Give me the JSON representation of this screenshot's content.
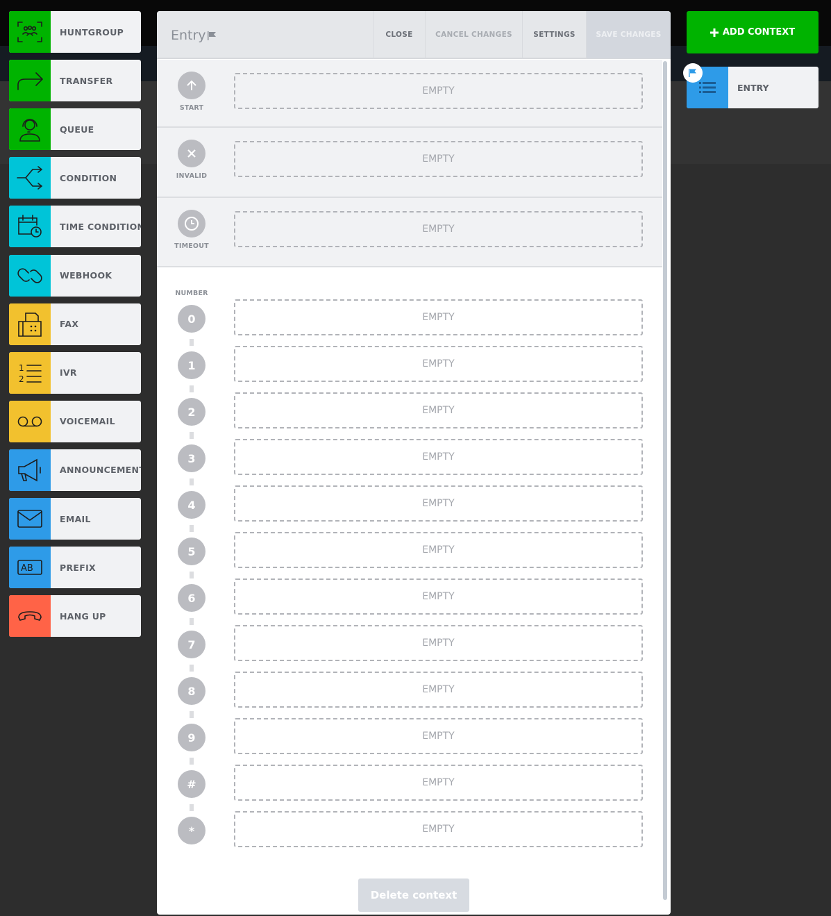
{
  "tools": [
    {
      "label": "HUNTGROUP",
      "icon": "huntgroup-icon",
      "color": "#00b300"
    },
    {
      "label": "TRANSFER",
      "icon": "transfer-arrow-icon",
      "color": "#00b300"
    },
    {
      "label": "QUEUE",
      "icon": "headset-agent-icon",
      "color": "#00b300"
    },
    {
      "label": "CONDITION",
      "icon": "branch-icon",
      "color": "#00c4d8"
    },
    {
      "label": "TIME CONDITION",
      "icon": "calendar-clock-icon",
      "color": "#00c4d8"
    },
    {
      "label": "WEBHOOK",
      "icon": "link-icon",
      "color": "#00c4d8"
    },
    {
      "label": "FAX",
      "icon": "fax-icon",
      "color": "#f2c12e"
    },
    {
      "label": "IVR",
      "icon": "numbered-list-icon",
      "color": "#f2c12e"
    },
    {
      "label": "VOICEMAIL",
      "icon": "voicemail-icon",
      "color": "#f2c12e"
    },
    {
      "label": "ANNOUNCEMENT",
      "icon": "megaphone-icon",
      "color": "#2e9be8"
    },
    {
      "label": "EMAIL",
      "icon": "envelope-icon",
      "color": "#2e9be8"
    },
    {
      "label": "PREFIX",
      "icon": "ab-prefix-icon",
      "color": "#2e9be8"
    },
    {
      "label": "HANG UP",
      "icon": "hangup-phone-icon",
      "color": "#ff6347"
    }
  ],
  "modal": {
    "title": "Entry",
    "buttons": {
      "close": "CLOSE",
      "cancel": "CANCEL CHANGES",
      "settings": "SETTINGS",
      "save": "SAVE CHANGES"
    },
    "sections": [
      {
        "label": "START",
        "icon": "arrow-up-icon",
        "slot": "EMPTY"
      },
      {
        "label": "INVALID",
        "icon": "x-icon",
        "slot": "EMPTY"
      },
      {
        "label": "TIMEOUT",
        "icon": "clock-icon",
        "slot": "EMPTY"
      }
    ],
    "number_label": "NUMBER",
    "keys": [
      {
        "key": "0",
        "slot": "EMPTY"
      },
      {
        "key": "1",
        "slot": "EMPTY"
      },
      {
        "key": "2",
        "slot": "EMPTY"
      },
      {
        "key": "3",
        "slot": "EMPTY"
      },
      {
        "key": "4",
        "slot": "EMPTY"
      },
      {
        "key": "5",
        "slot": "EMPTY"
      },
      {
        "key": "6",
        "slot": "EMPTY"
      },
      {
        "key": "7",
        "slot": "EMPTY"
      },
      {
        "key": "8",
        "slot": "EMPTY"
      },
      {
        "key": "9",
        "slot": "EMPTY"
      },
      {
        "key": "#",
        "slot": "EMPTY"
      },
      {
        "key": "*",
        "slot": "EMPTY"
      }
    ],
    "delete_label": "Delete context"
  },
  "right": {
    "add_context": "ADD CONTEXT",
    "entry_label": "ENTRY",
    "entry_color": "#2e9be8"
  }
}
